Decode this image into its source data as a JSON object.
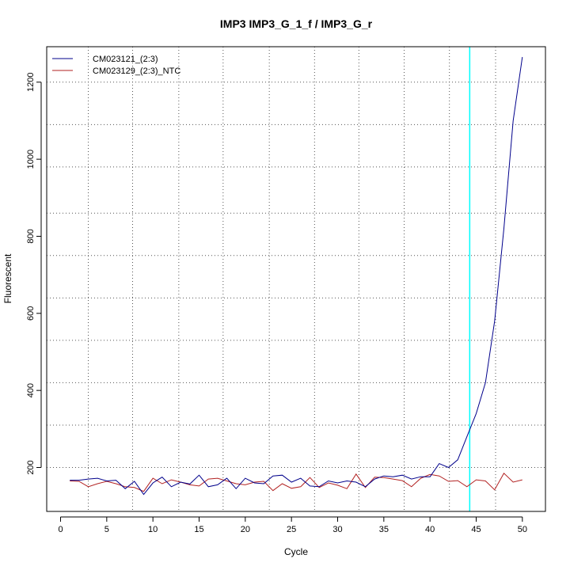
{
  "chart_data": {
    "type": "line",
    "title": "IMP3  IMP3_G_1_f / IMP3_G_r",
    "xlabel": "Cycle",
    "ylabel": "Fluorescent",
    "xlim": [
      -1.5,
      52.5
    ],
    "ylim": [
      86,
      1292
    ],
    "x_ticks": [
      0,
      5,
      10,
      15,
      20,
      25,
      30,
      35,
      40,
      45,
      50
    ],
    "y_ticks": [
      200,
      400,
      600,
      800,
      1000,
      1200
    ],
    "grid_x": [
      3,
      7.8,
      12.8,
      17.6,
      22.6,
      27.5,
      32.3,
      37.2,
      42.1,
      47.1
    ],
    "grid_y": [
      200,
      310,
      420,
      530,
      640,
      750,
      860,
      980,
      1090,
      1200
    ],
    "threshold_cycle": 44.3,
    "threshold_color": "#00ffff",
    "legend_position": "top-left",
    "x": [
      1,
      2,
      3,
      4,
      5,
      6,
      7,
      8,
      9,
      10,
      11,
      12,
      13,
      14,
      15,
      16,
      17,
      18,
      19,
      20,
      21,
      22,
      23,
      24,
      25,
      26,
      27,
      28,
      29,
      30,
      31,
      32,
      33,
      34,
      35,
      36,
      37,
      38,
      39,
      40,
      41,
      42,
      43,
      44,
      45,
      46,
      47,
      48,
      49,
      50
    ],
    "series": [
      {
        "name": "CM023121_(2:3)",
        "color": "#00008b",
        "values": [
          167,
          167,
          170,
          172,
          165,
          167,
          145,
          164,
          130,
          160,
          175,
          150,
          162,
          157,
          180,
          150,
          155,
          172,
          145,
          172,
          160,
          158,
          178,
          180,
          162,
          172,
          152,
          150,
          165,
          160,
          165,
          162,
          150,
          170,
          178,
          176,
          180,
          170,
          176,
          176,
          210,
          200,
          220,
          280,
          340,
          420,
          580,
          820,
          1100,
          1265
        ]
      },
      {
        "name": "CM023129_(2:3)_NTC",
        "color": "#b22222",
        "values": [
          165,
          164,
          150,
          158,
          164,
          158,
          150,
          148,
          138,
          172,
          158,
          168,
          162,
          155,
          152,
          170,
          172,
          165,
          158,
          155,
          162,
          164,
          140,
          158,
          146,
          150,
          174,
          148,
          160,
          154,
          145,
          183,
          148,
          175,
          174,
          170,
          166,
          150,
          172,
          182,
          178,
          164,
          166,
          150,
          168,
          165,
          142,
          185,
          162,
          168
        ]
      }
    ]
  }
}
